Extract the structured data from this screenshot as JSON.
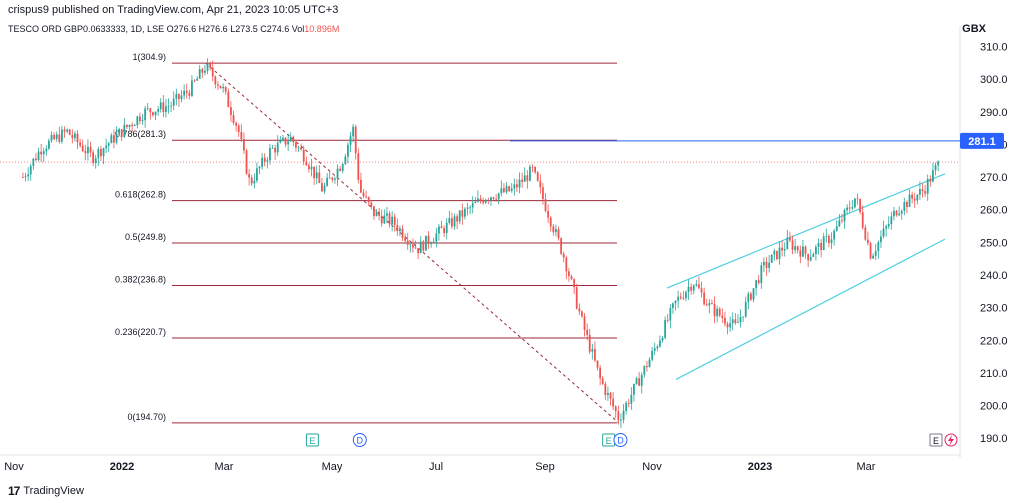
{
  "header": {
    "text": "crispus9 published on TradingView.com, Apr 21, 2023 10:05 UTC+3"
  },
  "symbol": {
    "name": "TESCO ORD GBP0.0633333, 1D, LSE",
    "o": "O276.6",
    "h": "H276.6",
    "l": "L273.5",
    "c": "C274.6",
    "vol_label": "Vol",
    "vol_value": "10.896M"
  },
  "currency": "GBX",
  "footer": {
    "brand": "TradingView"
  },
  "colors": {
    "up": "#26a69a",
    "down": "#ef5350",
    "fib": "#9c2a3a",
    "channel": "#4dd0e1",
    "price_tag": "#2962ff"
  },
  "chart_data": {
    "type": "candlestick",
    "y_axis": {
      "ticks": [
        190.0,
        200.0,
        210.0,
        220.0,
        230.0,
        240.0,
        250.0,
        260.0,
        270.0,
        280.0,
        290.0,
        300.0,
        310.0
      ],
      "range": [
        187,
        312
      ],
      "unit": "GBX"
    },
    "x_axis": {
      "ticks": [
        "Nov",
        "2022",
        "Mar",
        "May",
        "Jul",
        "Sep",
        "Nov",
        "2023",
        "Mar"
      ]
    },
    "current_price_label": "281.1",
    "last_price": 274.6,
    "fibonacci": [
      {
        "label": "1(304.9)",
        "value": 304.9
      },
      {
        "label": "0.786(281.3)",
        "value": 281.3
      },
      {
        "label": "0.618(262.8)",
        "value": 262.8
      },
      {
        "label": "0.5(249.8)",
        "value": 249.8
      },
      {
        "label": "0.382(236.8)",
        "value": 236.8
      },
      {
        "label": "0.236(220.7)",
        "value": 220.7
      },
      {
        "label": "0(194.70)",
        "value": 194.7
      }
    ],
    "horizontal_line": 281.1,
    "channel": {
      "upper": [
        [
          "2022-11-01",
          236
        ],
        [
          "2023-04-20",
          271
        ]
      ],
      "lower": [
        [
          "2022-11-05",
          208
        ],
        [
          "2023-04-20",
          251
        ]
      ]
    },
    "trend_line": [
      [
        "2022-02-10",
        304.9
      ],
      [
        "2022-10-12",
        194.7
      ]
    ],
    "event_markers": [
      {
        "label": "E",
        "date": "2022-04-14"
      },
      {
        "label": "D",
        "date": "2022-05-12"
      },
      {
        "label": "E",
        "date": "2022-10-06"
      },
      {
        "label": "D",
        "date": "2022-10-13"
      },
      {
        "label": "E",
        "date": "2023-04-13"
      }
    ],
    "price_path": [
      [
        "2021-10-25",
        270
      ],
      [
        "2021-11-05",
        279
      ],
      [
        "2021-11-20",
        284
      ],
      [
        "2021-12-05",
        276
      ],
      [
        "2021-12-20",
        283
      ],
      [
        "2022-01-05",
        290
      ],
      [
        "2022-01-20",
        292
      ],
      [
        "2022-02-01",
        297
      ],
      [
        "2022-02-10",
        304
      ],
      [
        "2022-02-20",
        297
      ],
      [
        "2022-03-01",
        285
      ],
      [
        "2022-03-08",
        268
      ],
      [
        "2022-03-20",
        278
      ],
      [
        "2022-04-01",
        282
      ],
      [
        "2022-04-10",
        276
      ],
      [
        "2022-04-20",
        266
      ],
      [
        "2022-05-01",
        274
      ],
      [
        "2022-05-08",
        285
      ],
      [
        "2022-05-12",
        266
      ],
      [
        "2022-05-20",
        259
      ],
      [
        "2022-06-01",
        256
      ],
      [
        "2022-06-15",
        248
      ],
      [
        "2022-06-25",
        252
      ],
      [
        "2022-07-10",
        258
      ],
      [
        "2022-07-25",
        264
      ],
      [
        "2022-08-10",
        266
      ],
      [
        "2022-08-22",
        272
      ],
      [
        "2022-09-01",
        258
      ],
      [
        "2022-09-10",
        245
      ],
      [
        "2022-09-20",
        226
      ],
      [
        "2022-10-01",
        208
      ],
      [
        "2022-10-12",
        196
      ],
      [
        "2022-10-20",
        204
      ],
      [
        "2022-11-01",
        216
      ],
      [
        "2022-11-15",
        232
      ],
      [
        "2022-11-25",
        238
      ],
      [
        "2022-12-05",
        230
      ],
      [
        "2022-12-20",
        224
      ],
      [
        "2023-01-05",
        242
      ],
      [
        "2023-01-20",
        250
      ],
      [
        "2023-02-01",
        246
      ],
      [
        "2023-02-15",
        252
      ],
      [
        "2023-03-01",
        264
      ],
      [
        "2023-03-10",
        246
      ],
      [
        "2023-03-25",
        260
      ],
      [
        "2023-04-10",
        266
      ],
      [
        "2023-04-20",
        275
      ]
    ]
  }
}
